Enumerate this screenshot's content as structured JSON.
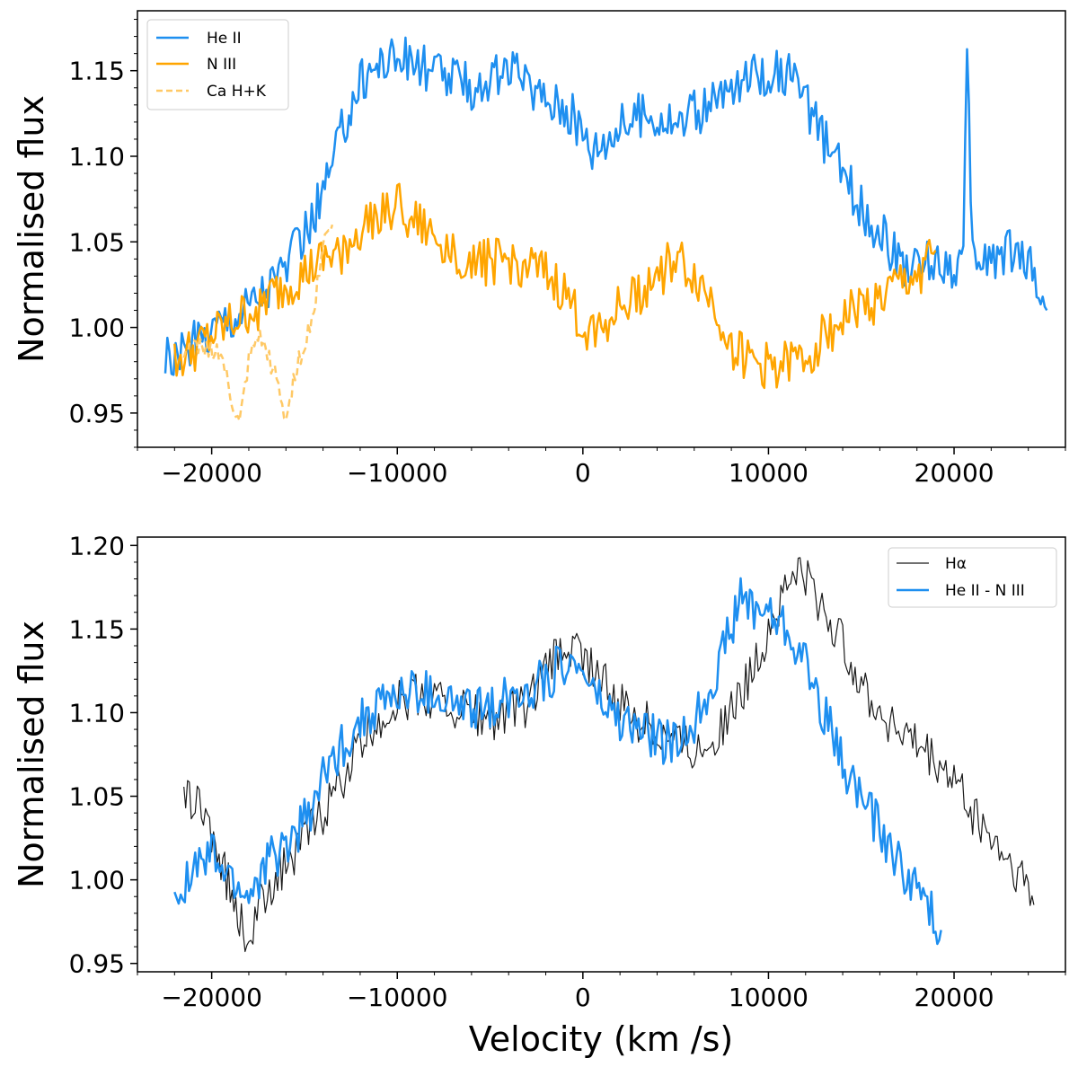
{
  "figure": {
    "xlabel": "Velocity (km /s)",
    "colors": {
      "heii": "#1e8ff0",
      "niii": "#ffa500",
      "ca": "#ffc966",
      "halpha": "#1a1a1a",
      "diff": "#1e8ff0"
    }
  },
  "chart_data": [
    {
      "type": "line",
      "panel": "top",
      "title": "",
      "xlabel": "",
      "ylabel": "Normalised flux",
      "xlim": [
        -24000,
        26000
      ],
      "ylim": [
        0.93,
        1.185
      ],
      "xticks": [
        -20000,
        -10000,
        0,
        10000,
        20000
      ],
      "xtick_labels": [
        "−20000",
        "−10000",
        "0",
        "10000",
        "20000"
      ],
      "yticks": [
        0.95,
        1.0,
        1.05,
        1.1,
        1.15
      ],
      "ytick_labels": [
        "0.95",
        "1.00",
        "1.05",
        "1.10",
        "1.15"
      ],
      "legend": {
        "location": "top-left",
        "entries": [
          "He II",
          "N III",
          "Ca H+K"
        ]
      },
      "series": [
        {
          "name": "He II",
          "style": "solid",
          "color": "#1e8ff0",
          "x": [
            -22500,
            -21500,
            -20500,
            -19500,
            -18500,
            -17500,
            -16500,
            -15500,
            -14500,
            -14000,
            -13500,
            -13000,
            -12500,
            -12000,
            -11500,
            -11000,
            -10500,
            -10000,
            -9000,
            -8000,
            -7000,
            -6000,
            -5000,
            -4000,
            -3000,
            -2000,
            -1000,
            0,
            500,
            1000,
            2000,
            3000,
            4000,
            5000,
            6000,
            7000,
            8000,
            9000,
            10000,
            11000,
            11500,
            12000,
            13000,
            14000,
            15000,
            16000,
            17000,
            18000,
            19000,
            20000,
            20500,
            20700,
            21000,
            22000,
            23000,
            24000,
            25000
          ],
          "y": [
            0.98,
            0.985,
            0.995,
            1.005,
            1.01,
            1.02,
            1.03,
            1.045,
            1.065,
            1.08,
            1.095,
            1.115,
            1.13,
            1.145,
            1.15,
            1.155,
            1.158,
            1.158,
            1.155,
            1.15,
            1.145,
            1.14,
            1.145,
            1.15,
            1.142,
            1.135,
            1.13,
            1.115,
            1.105,
            1.11,
            1.118,
            1.125,
            1.125,
            1.12,
            1.125,
            1.13,
            1.14,
            1.145,
            1.15,
            1.148,
            1.14,
            1.13,
            1.11,
            1.09,
            1.07,
            1.055,
            1.04,
            1.035,
            1.04,
            1.035,
            1.04,
            1.155,
            1.04,
            1.04,
            1.045,
            1.04,
            1.01
          ]
        },
        {
          "name": "N III",
          "style": "solid",
          "color": "#ffa500",
          "x": [
            -22000,
            -17500,
            -13000,
            -12000,
            -11000,
            -10000,
            -9000,
            -8000,
            -7000,
            -6000,
            -5000,
            -4000,
            -3000,
            -2000,
            -1000,
            0,
            1000,
            2000,
            3000,
            4000,
            5000,
            6000,
            7000,
            8000,
            9000,
            10000,
            11000,
            12000,
            13000,
            14000,
            15000,
            16000,
            17000,
            18000,
            19000
          ],
          "y": [
            0.978,
            1.012,
            1.045,
            1.055,
            1.068,
            1.072,
            1.06,
            1.052,
            1.045,
            1.04,
            1.038,
            1.038,
            1.035,
            1.03,
            1.02,
            1.0,
            1.002,
            1.012,
            1.02,
            1.03,
            1.04,
            1.03,
            1.015,
            0.99,
            0.98,
            0.978,
            0.978,
            0.982,
            0.995,
            1.005,
            1.012,
            1.015,
            1.025,
            1.03,
            1.045
          ]
        },
        {
          "name": "Ca H+K",
          "style": "dashed",
          "color": "#ffc966",
          "x": [
            -21500,
            -20500,
            -19500,
            -19000,
            -18500,
            -18000,
            -17500,
            -17000,
            -16500,
            -16000,
            -15500,
            -15000,
            -14500,
            -14000,
            -13500
          ],
          "y": [
            0.985,
            0.99,
            0.985,
            0.96,
            0.942,
            0.98,
            0.995,
            0.985,
            0.97,
            0.945,
            0.975,
            0.99,
            1.01,
            1.05,
            1.06
          ]
        }
      ]
    },
    {
      "type": "line",
      "panel": "bottom",
      "title": "",
      "xlabel": "Velocity (km /s)",
      "ylabel": "Normalised flux",
      "xlim": [
        -24000,
        26000
      ],
      "ylim": [
        0.945,
        1.205
      ],
      "xticks": [
        -20000,
        -10000,
        0,
        10000,
        20000
      ],
      "xtick_labels": [
        "−20000",
        "−10000",
        "0",
        "10000",
        "20000"
      ],
      "yticks": [
        0.95,
        1.0,
        1.05,
        1.1,
        1.15,
        1.2
      ],
      "ytick_labels": [
        "0.95",
        "1.00",
        "1.05",
        "1.10",
        "1.15",
        "1.20"
      ],
      "legend": {
        "location": "top-right",
        "entries": [
          "Hα",
          "He II - N III"
        ]
      },
      "series": [
        {
          "name": "Hα",
          "style": "solid",
          "color": "#1a1a1a",
          "x": [
            -21500,
            -21000,
            -20000,
            -19500,
            -19000,
            -18500,
            -18000,
            -17000,
            -16000,
            -15000,
            -14000,
            -13000,
            -12000,
            -11000,
            -10000,
            -9000,
            -8000,
            -7000,
            -6000,
            -5000,
            -4000,
            -3000,
            -2000,
            -1000,
            0,
            1000,
            2000,
            3000,
            4000,
            5000,
            6000,
            7000,
            8000,
            9000,
            10000,
            11000,
            11500,
            12000,
            13000,
            14000,
            15000,
            16000,
            17000,
            18000,
            19000,
            20000,
            21000,
            22000,
            23000,
            24000,
            24300
          ],
          "y": [
            1.045,
            1.05,
            1.03,
            1.01,
            0.995,
            0.975,
            0.965,
            0.995,
            1.01,
            1.025,
            1.04,
            1.06,
            1.08,
            1.095,
            1.105,
            1.11,
            1.108,
            1.105,
            1.1,
            1.095,
            1.1,
            1.105,
            1.125,
            1.14,
            1.135,
            1.12,
            1.105,
            1.095,
            1.09,
            1.085,
            1.08,
            1.085,
            1.1,
            1.12,
            1.15,
            1.175,
            1.185,
            1.18,
            1.16,
            1.14,
            1.12,
            1.1,
            1.09,
            1.08,
            1.07,
            1.06,
            1.04,
            1.025,
            1.01,
            0.995,
            0.985
          ]
        },
        {
          "name": "He II - N III",
          "style": "solid",
          "color": "#1e8ff0",
          "x": [
            -22000,
            -21000,
            -20000,
            -19000,
            -18000,
            -17000,
            -16000,
            -15000,
            -14000,
            -13000,
            -12000,
            -11000,
            -10000,
            -9000,
            -8000,
            -7000,
            -6000,
            -5000,
            -4000,
            -3000,
            -2000,
            -1000,
            0,
            1000,
            2000,
            3000,
            4000,
            5000,
            6000,
            7000,
            8000,
            8500,
            9000,
            10000,
            11000,
            12000,
            13000,
            14000,
            15000,
            16000,
            17000,
            18000,
            19000,
            19300
          ],
          "y": [
            0.995,
            1.005,
            1.015,
            1.0,
            0.99,
            1.01,
            1.02,
            1.035,
            1.06,
            1.08,
            1.095,
            1.105,
            1.11,
            1.112,
            1.11,
            1.105,
            1.1,
            1.105,
            1.11,
            1.115,
            1.12,
            1.13,
            1.125,
            1.105,
            1.095,
            1.09,
            1.085,
            1.08,
            1.095,
            1.12,
            1.15,
            1.17,
            1.165,
            1.16,
            1.15,
            1.13,
            1.1,
            1.07,
            1.05,
            1.03,
            1.01,
            0.995,
            0.975,
            0.97
          ]
        }
      ]
    }
  ]
}
